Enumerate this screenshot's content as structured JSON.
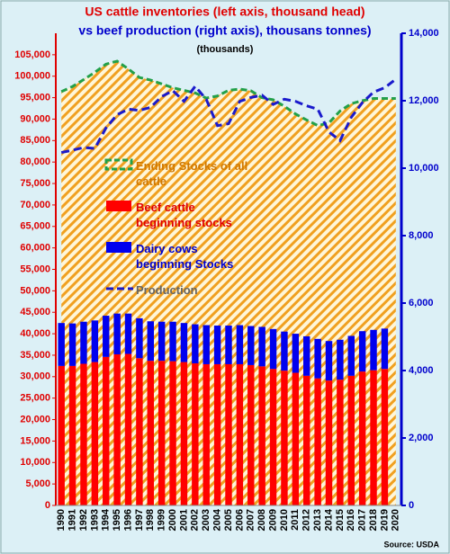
{
  "chart_data": {
    "type": "bar",
    "title": "US cattle inventories (left axis, thousand head)",
    "subtitle": "vs beef production (right axis), thousans tonnes)",
    "unit_note": "(thousands)",
    "source": "Source: USDA",
    "categories": [
      "1990",
      "1991",
      "1992",
      "1993",
      "1994",
      "1995",
      "1996",
      "1997",
      "1998",
      "1999",
      "2000",
      "2001",
      "2002",
      "2003",
      "2004",
      "2005",
      "2006",
      "2007",
      "2008",
      "2009",
      "2010",
      "2011",
      "2012",
      "2013",
      "2014",
      "2015",
      "2016",
      "2017",
      "2018",
      "2019",
      "2020"
    ],
    "series": [
      {
        "name": "Ending Stocks of all cattle",
        "type": "area",
        "color": "#f0a020",
        "edge_color": "#22a04a",
        "values": [
          96400,
          97600,
          99200,
          100900,
          102800,
          103500,
          101700,
          99700,
          99100,
          98200,
          97300,
          96700,
          96100,
          94900,
          95400,
          96700,
          97000,
          96600,
          95000,
          94500,
          93000,
          91200,
          89800,
          88500,
          89100,
          91900,
          93600,
          94300,
          94800,
          94800,
          94800
        ]
      },
      {
        "name": "Beef cattle beginning stocks",
        "type": "bar",
        "color": "#ff0000",
        "values": [
          32500,
          32500,
          33000,
          33400,
          34600,
          35200,
          35300,
          34300,
          33700,
          33700,
          33600,
          33400,
          33100,
          32900,
          32900,
          32900,
          32900,
          32700,
          32400,
          31800,
          31400,
          30900,
          30200,
          29600,
          29100,
          29300,
          30200,
          31200,
          31500,
          31800,
          null
        ]
      },
      {
        "name": "Dairy cows beginning Stocks",
        "type": "bar",
        "color": "#0000ee",
        "values": [
          10000,
          9900,
          9800,
          9700,
          9600,
          9500,
          9400,
          9300,
          9200,
          9100,
          9200,
          9100,
          9100,
          9100,
          9000,
          9000,
          9100,
          9100,
          9200,
          9300,
          9100,
          9100,
          9200,
          9200,
          9200,
          9300,
          9300,
          9400,
          9400,
          9400,
          null
        ]
      },
      {
        "name": "Production",
        "type": "line",
        "axis": "y2",
        "color": "#1a1acc",
        "values": [
          10465,
          10534,
          10612,
          10584,
          11194,
          11585,
          11749,
          11714,
          11803,
          12123,
          12298,
          11983,
          12427,
          12039,
          11261,
          11318,
          11980,
          12097,
          12163,
          11891,
          12046,
          11983,
          11848,
          11751,
          11075,
          10817,
          11507,
          11943,
          12256,
          12385,
          12640
        ]
      }
    ],
    "ylim": [
      0,
      110000
    ],
    "yticks": [
      0,
      {
        "value": 5000,
        "label": "5,000"
      },
      {
        "value": 10000,
        "label": "10,000"
      },
      {
        "value": 15000,
        "label": "15,000"
      },
      {
        "value": 20000,
        "label": "20,000"
      },
      {
        "value": 25000,
        "label": "25,000"
      },
      {
        "value": 30000,
        "label": "30,000"
      },
      {
        "value": 35000,
        "label": "35,000"
      },
      {
        "value": 40000,
        "label": "40,000"
      },
      {
        "value": 45000,
        "label": "45,000"
      },
      {
        "value": 50000,
        "label": "50,000"
      },
      {
        "value": 55000,
        "label": "55,000"
      },
      {
        "value": 60000,
        "label": "60,000"
      },
      {
        "value": 65000,
        "label": "65,000"
      },
      {
        "value": 70000,
        "label": "70,000"
      },
      {
        "value": 75000,
        "label": "75,000"
      },
      {
        "value": 80000,
        "label": "80,000"
      },
      {
        "value": 85000,
        "label": "85,000"
      },
      {
        "value": 90000,
        "label": "90,000"
      },
      {
        "value": 95000,
        "label": "95,000"
      },
      {
        "value": 100000,
        "label": "100,000"
      },
      {
        "value": 105000,
        "label": "105,000"
      }
    ],
    "y2lim": [
      0,
      14000
    ],
    "y2ticks": [
      0,
      {
        "value": 2000,
        "label": "2,000"
      },
      {
        "value": 4000,
        "label": "4,000"
      },
      {
        "value": 6000,
        "label": "6,000"
      },
      {
        "value": 8000,
        "label": "8,000"
      },
      {
        "value": 10000,
        "label": "10,000"
      },
      {
        "value": 12000,
        "label": "12,000"
      },
      {
        "value": 14000,
        "label": "14,000"
      }
    ]
  }
}
